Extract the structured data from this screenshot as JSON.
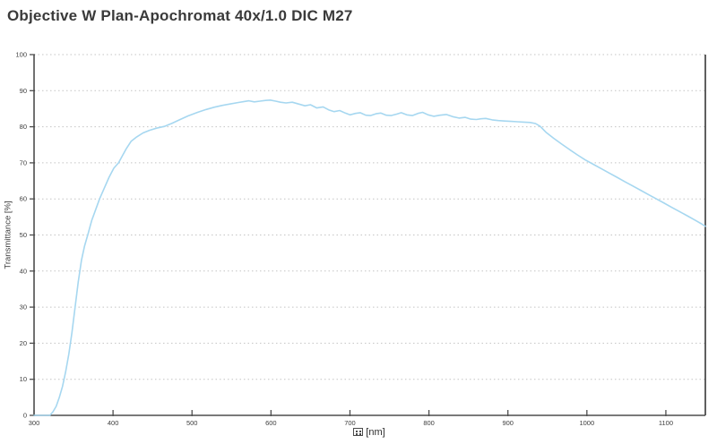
{
  "title": "Objective W Plan-Apochromat 40x/1.0 DIC M27",
  "axes": {
    "y": {
      "label": "Transmittance [%]"
    },
    "x": {
      "unit_label": "[nm]",
      "unit_prefix_icon": "missing-glyph-box-icon"
    }
  },
  "colors": {
    "curve": "#a6d7f0",
    "axis": "#4d4d4d",
    "grid": "#c4c4c4",
    "tick_text": "#3d3d3d",
    "title_text": "#3a3a3a",
    "background": "#ffffff"
  },
  "chart_data": {
    "type": "line",
    "title": "Objective W Plan-Apochromat 40x/1.0 DIC M27",
    "xlabel": "[nm]",
    "ylabel": "Transmittance [%]",
    "xlim": [
      300,
      1150
    ],
    "ylim": [
      0,
      100
    ],
    "x_ticks": [
      300,
      400,
      500,
      600,
      700,
      800,
      900,
      1000,
      1100
    ],
    "y_ticks": [
      0,
      10,
      20,
      30,
      40,
      50,
      60,
      70,
      80,
      90,
      100
    ],
    "grid": "horizontal dotted lines at every 10%",
    "legend": "none",
    "frame": "left, bottom and right solid borders; no top border",
    "series": [
      {
        "name": "transmittance",
        "color": "#a6d7f0",
        "points": [
          [
            300,
            0
          ],
          [
            320,
            0
          ],
          [
            324,
            1
          ],
          [
            328,
            2.5
          ],
          [
            332,
            5
          ],
          [
            336,
            8
          ],
          [
            340,
            12
          ],
          [
            344,
            17
          ],
          [
            348,
            23
          ],
          [
            352,
            30
          ],
          [
            356,
            37
          ],
          [
            360,
            43
          ],
          [
            364,
            47
          ],
          [
            368,
            50
          ],
          [
            373,
            54
          ],
          [
            378,
            57
          ],
          [
            383,
            60
          ],
          [
            389,
            63
          ],
          [
            395,
            66
          ],
          [
            401,
            68.5
          ],
          [
            407,
            70
          ],
          [
            412,
            72
          ],
          [
            417,
            74
          ],
          [
            423,
            76
          ],
          [
            430,
            77.2
          ],
          [
            438,
            78.3
          ],
          [
            446,
            79
          ],
          [
            455,
            79.6
          ],
          [
            465,
            80.1
          ],
          [
            475,
            81
          ],
          [
            485,
            82
          ],
          [
            495,
            83
          ],
          [
            507,
            84
          ],
          [
            518,
            84.8
          ],
          [
            528,
            85.4
          ],
          [
            538,
            85.9
          ],
          [
            548,
            86.3
          ],
          [
            558,
            86.7
          ],
          [
            566,
            87
          ],
          [
            572,
            87.2
          ],
          [
            579,
            86.9
          ],
          [
            586,
            87.1
          ],
          [
            593,
            87.3
          ],
          [
            599,
            87.4
          ],
          [
            606,
            87.1
          ],
          [
            612,
            86.8
          ],
          [
            619,
            86.6
          ],
          [
            627,
            86.8
          ],
          [
            635,
            86.3
          ],
          [
            643,
            85.8
          ],
          [
            650,
            86.1
          ],
          [
            658,
            85.2
          ],
          [
            666,
            85.5
          ],
          [
            673,
            84.7
          ],
          [
            680,
            84.2
          ],
          [
            687,
            84.5
          ],
          [
            694,
            83.8
          ],
          [
            700,
            83.3
          ],
          [
            707,
            83.7
          ],
          [
            713,
            83.9
          ],
          [
            720,
            83.2
          ],
          [
            726,
            83.1
          ],
          [
            733,
            83.6
          ],
          [
            739,
            83.8
          ],
          [
            746,
            83.2
          ],
          [
            752,
            83.1
          ],
          [
            759,
            83.5
          ],
          [
            765,
            83.9
          ],
          [
            772,
            83.3
          ],
          [
            779,
            83.1
          ],
          [
            786,
            83.7
          ],
          [
            792,
            84
          ],
          [
            799,
            83.3
          ],
          [
            806,
            82.9
          ],
          [
            814,
            83.2
          ],
          [
            822,
            83.4
          ],
          [
            830,
            82.8
          ],
          [
            838,
            82.4
          ],
          [
            846,
            82.6
          ],
          [
            853,
            82.1
          ],
          [
            860,
            82
          ],
          [
            866,
            82.2
          ],
          [
            872,
            82.3
          ],
          [
            880,
            81.9
          ],
          [
            888,
            81.7
          ],
          [
            896,
            81.6
          ],
          [
            904,
            81.5
          ],
          [
            912,
            81.4
          ],
          [
            920,
            81.3
          ],
          [
            928,
            81.2
          ],
          [
            935,
            80.9
          ],
          [
            941,
            80.1
          ],
          [
            948,
            78.5
          ],
          [
            958,
            76.8
          ],
          [
            968,
            75.2
          ],
          [
            978,
            73.7
          ],
          [
            988,
            72.2
          ],
          [
            998,
            70.8
          ],
          [
            1008,
            69.6
          ],
          [
            1018,
            68.4
          ],
          [
            1028,
            67.2
          ],
          [
            1038,
            66
          ],
          [
            1048,
            64.8
          ],
          [
            1058,
            63.6
          ],
          [
            1068,
            62.4
          ],
          [
            1078,
            61.2
          ],
          [
            1088,
            60
          ],
          [
            1098,
            58.8
          ],
          [
            1108,
            57.6
          ],
          [
            1118,
            56.4
          ],
          [
            1128,
            55.2
          ],
          [
            1138,
            54
          ],
          [
            1145,
            53.1
          ],
          [
            1150,
            52.4
          ]
        ]
      }
    ]
  }
}
